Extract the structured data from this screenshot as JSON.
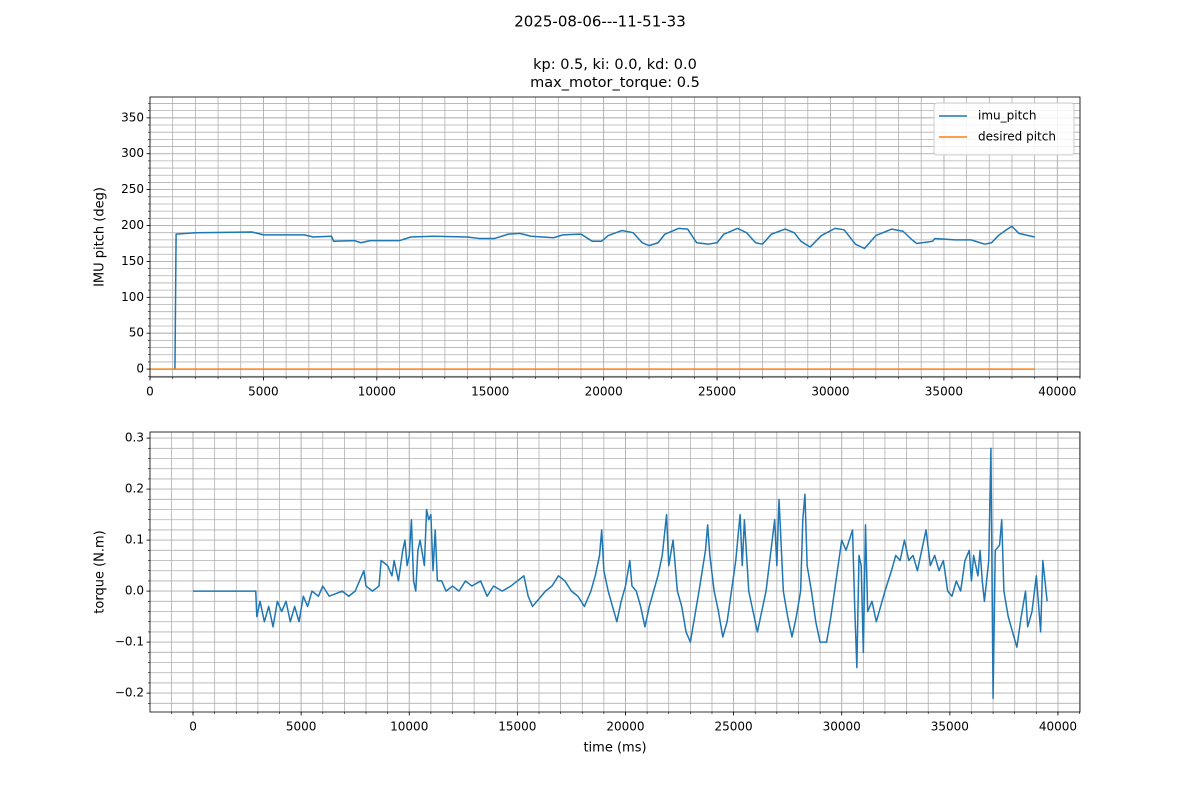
{
  "suptitle": "2025-08-06---11-51-33",
  "chart_data": [
    {
      "type": "line",
      "title": [
        "kp: 0.5, ki: 0.0, kd: 0.0",
        "max_motor_torque: 0.5"
      ],
      "ylabel": "IMU pitch (deg)",
      "xlim": [
        0,
        41000
      ],
      "ylim": [
        -11,
        379
      ],
      "xticks": [
        0,
        5000,
        10000,
        15000,
        20000,
        25000,
        30000,
        35000,
        40000
      ],
      "yticks": [
        0,
        50,
        100,
        150,
        200,
        250,
        300,
        350
      ],
      "grid": true,
      "minor_step": {
        "x": 1000,
        "y": 10
      },
      "legend": "upper right",
      "series": [
        {
          "name": "imu_pitch",
          "color": "#1f77b4",
          "x": [
            1100,
            1150,
            2000,
            4500,
            5000,
            6800,
            7200,
            8000,
            8100,
            9000,
            9300,
            9700,
            11000,
            11500,
            12500,
            14000,
            14500,
            15200,
            15800,
            16300,
            16800,
            17800,
            18200,
            19000,
            19500,
            19900,
            20200,
            20800,
            21300,
            21700,
            22000,
            22400,
            22700,
            23300,
            23700,
            24100,
            24600,
            25000,
            25300,
            25900,
            26300,
            26700,
            27000,
            27400,
            28000,
            28400,
            28700,
            29100,
            29600,
            30200,
            30600,
            31100,
            31500,
            32000,
            32700,
            33200,
            33600,
            33800,
            34500,
            34600,
            35500,
            36200,
            36800,
            37100,
            37400,
            37800,
            38000,
            38300,
            39000
          ],
          "values": [
            0,
            188,
            190,
            191,
            187,
            187,
            184,
            185,
            178,
            179,
            176,
            179,
            179,
            184,
            185,
            184,
            182,
            182,
            188,
            189,
            185,
            183,
            187,
            188,
            178,
            178,
            186,
            193,
            190,
            176,
            172,
            176,
            188,
            196,
            195,
            176,
            174,
            176,
            188,
            196,
            190,
            176,
            174,
            188,
            195,
            190,
            178,
            170,
            186,
            196,
            194,
            174,
            168,
            186,
            195,
            192,
            180,
            175,
            178,
            182,
            180,
            180,
            174,
            176,
            186,
            195,
            199,
            189,
            184
          ]
        },
        {
          "name": "desired pitch",
          "color": "#ff7f0e",
          "x": [
            0,
            39000
          ],
          "values": [
            0,
            0
          ]
        }
      ]
    },
    {
      "type": "line",
      "xlabel": "time (ms)",
      "ylabel": "torque (N.m)",
      "xlim": [
        -1990,
        41020
      ],
      "ylim": [
        -0.237,
        0.312
      ],
      "xticks": [
        0,
        5000,
        10000,
        15000,
        20000,
        25000,
        30000,
        35000,
        40000
      ],
      "yticks": [
        {
          "value": -0.2,
          "label": "−0.2"
        },
        {
          "value": -0.1,
          "label": "−0.1"
        },
        {
          "value": 0,
          "label": "0.0"
        },
        0.1,
        0.2,
        0.3
      ],
      "grid": true,
      "minor_step": {
        "x": 1000,
        "y": 0.02
      },
      "series": [
        {
          "name": "torque",
          "color": "#1f77b4",
          "x": [
            0,
            2900,
            2950,
            3100,
            3300,
            3500,
            3700,
            3900,
            4100,
            4300,
            4500,
            4700,
            4900,
            5100,
            5300,
            5500,
            5800,
            6000,
            6300,
            6600,
            6900,
            7200,
            7500,
            7800,
            7900,
            8000,
            8300,
            8600,
            8700,
            9000,
            9200,
            9300,
            9500,
            9700,
            9800,
            9900,
            10000,
            10100,
            10200,
            10300,
            10400,
            10500,
            10700,
            10800,
            10900,
            11000,
            11100,
            11200,
            11300,
            11500,
            11700,
            12000,
            12300,
            12600,
            12900,
            13300,
            13600,
            13900,
            14300,
            14700,
            15000,
            15300,
            15500,
            15700,
            15900,
            16100,
            16300,
            16600,
            16900,
            17200,
            17500,
            17800,
            18100,
            18400,
            18600,
            18800,
            18900,
            19000,
            19200,
            19400,
            19600,
            19800,
            20000,
            20200,
            20300,
            20500,
            20700,
            20900,
            21100,
            21300,
            21500,
            21700,
            21900,
            22000,
            22200,
            22400,
            22600,
            22800,
            23000,
            23200,
            23400,
            23700,
            23800,
            23900,
            24100,
            24300,
            24500,
            24700,
            24900,
            25100,
            25300,
            25400,
            25500,
            25700,
            25900,
            26100,
            26300,
            26500,
            26700,
            26900,
            27000,
            27100,
            27300,
            27500,
            27700,
            27900,
            28100,
            28200,
            28300,
            28400,
            28600,
            28800,
            29000,
            29300,
            29500,
            29800,
            30000,
            30200,
            30500,
            30600,
            30700,
            30800,
            30900,
            31000,
            31100,
            31200,
            31400,
            31600,
            31800,
            32000,
            32300,
            32500,
            32700,
            32900,
            33100,
            33300,
            33500,
            33700,
            33900,
            34100,
            34300,
            34500,
            34700,
            34900,
            35100,
            35300,
            35500,
            35700,
            35900,
            36000,
            36100,
            36300,
            36400,
            36500,
            36600,
            36800,
            36900,
            37000,
            37100,
            37300,
            37400,
            37500,
            37700,
            37900,
            38100,
            38300,
            38500,
            38600,
            38800,
            39000,
            39200,
            39300,
            39500
          ],
          "values": [
            0,
            0,
            -0.05,
            -0.02,
            -0.06,
            -0.03,
            -0.07,
            -0.02,
            -0.04,
            -0.02,
            -0.06,
            -0.03,
            -0.06,
            -0.01,
            -0.03,
            0.0,
            -0.01,
            0.01,
            -0.01,
            -0.005,
            0.0,
            -0.01,
            0.0,
            0.03,
            0.04,
            0.01,
            0.0,
            0.01,
            0.06,
            0.05,
            0.03,
            0.06,
            0.02,
            0.08,
            0.1,
            0.05,
            0.07,
            0.14,
            0.02,
            0.0,
            0.08,
            0.1,
            0.05,
            0.16,
            0.14,
            0.15,
            0.04,
            0.12,
            0.02,
            0.02,
            0.0,
            0.01,
            0.0,
            0.02,
            0.01,
            0.02,
            -0.01,
            0.01,
            0.0,
            0.01,
            0.02,
            0.03,
            -0.01,
            -0.03,
            -0.02,
            -0.01,
            0.0,
            0.01,
            0.03,
            0.02,
            0.0,
            -0.01,
            -0.03,
            0.0,
            0.03,
            0.07,
            0.12,
            0.04,
            0.0,
            -0.03,
            -0.06,
            -0.02,
            0.01,
            0.06,
            0.01,
            0.0,
            -0.03,
            -0.07,
            -0.03,
            0.0,
            0.03,
            0.07,
            0.15,
            0.05,
            0.1,
            0.0,
            -0.03,
            -0.08,
            -0.1,
            -0.05,
            0.0,
            0.08,
            0.13,
            0.07,
            0.0,
            -0.04,
            -0.09,
            -0.06,
            0.0,
            0.06,
            0.15,
            0.05,
            0.14,
            0.0,
            -0.04,
            -0.08,
            -0.04,
            0.0,
            0.07,
            0.14,
            0.05,
            0.18,
            0.0,
            -0.05,
            -0.09,
            -0.05,
            0.0,
            0.14,
            0.19,
            0.05,
            0.0,
            -0.06,
            -0.1,
            -0.1,
            -0.05,
            0.04,
            0.1,
            0.08,
            0.12,
            -0.03,
            -0.15,
            0.07,
            0.05,
            -0.12,
            0.13,
            -0.04,
            -0.02,
            -0.06,
            -0.03,
            0.0,
            0.04,
            0.07,
            0.06,
            0.1,
            0.06,
            0.07,
            0.04,
            0.08,
            0.12,
            0.05,
            0.07,
            0.04,
            0.06,
            0.0,
            -0.01,
            0.02,
            0.0,
            0.06,
            0.08,
            0.02,
            0.07,
            0.03,
            0.08,
            0.02,
            -0.02,
            0.06,
            0.28,
            -0.21,
            0.08,
            0.09,
            0.14,
            0.0,
            -0.05,
            -0.08,
            -0.11,
            -0.05,
            0.0,
            -0.07,
            -0.04,
            0.03,
            -0.08,
            0.06,
            -0.02
          ]
        }
      ]
    }
  ]
}
